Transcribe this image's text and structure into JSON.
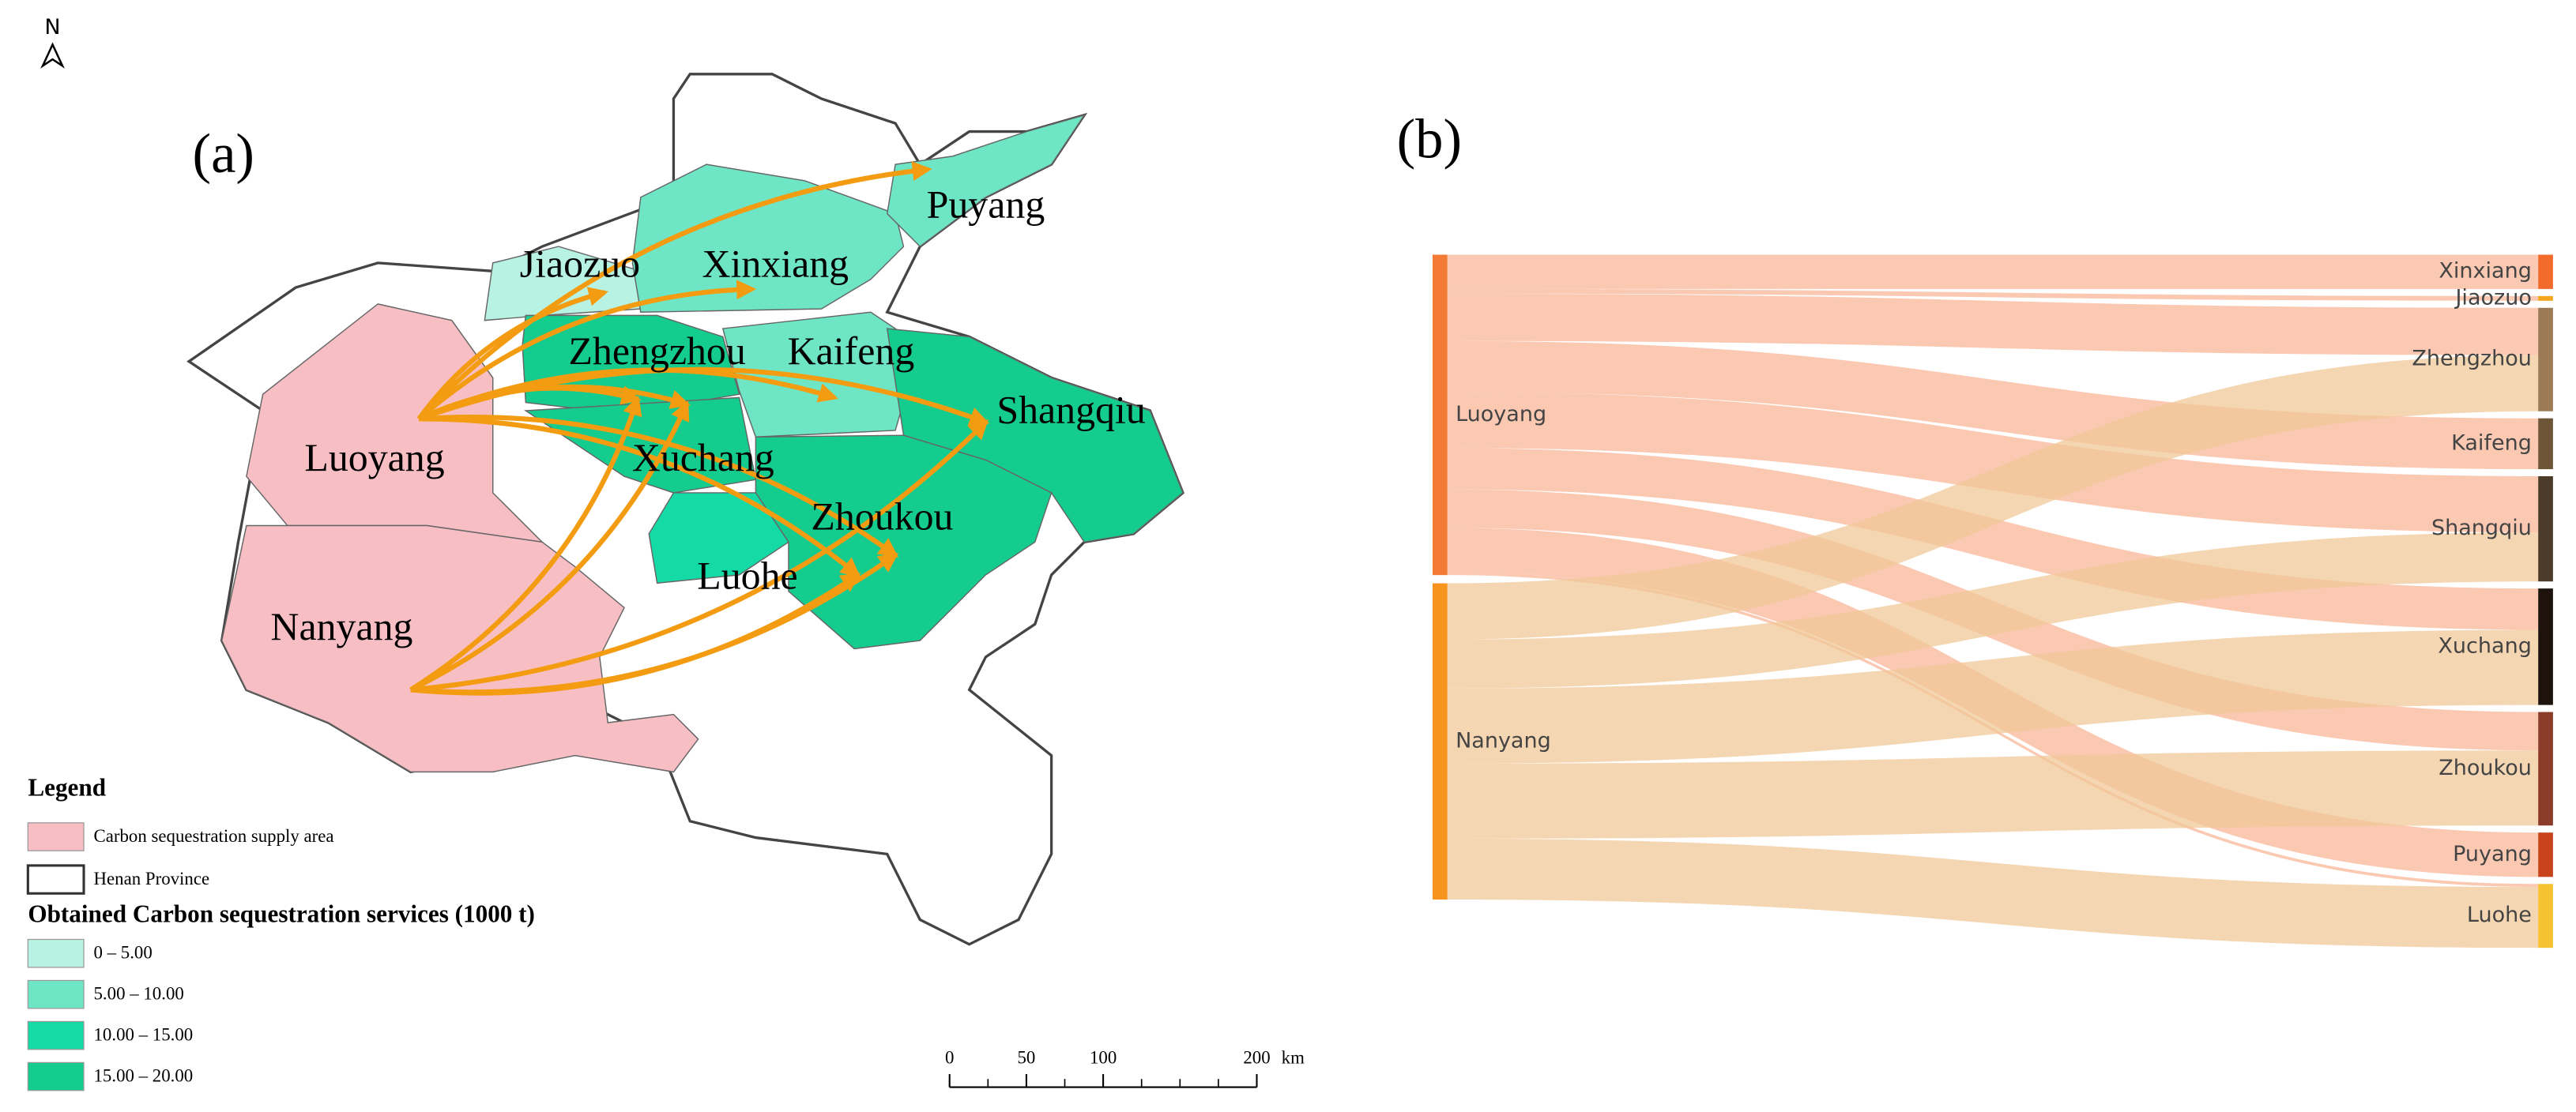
{
  "map": {
    "north": "N",
    "panel_label": "(a)",
    "legend": {
      "title": "Legend",
      "supply": {
        "label": "Carbon sequestration supply area",
        "color": "#f7bfc4"
      },
      "boundary": {
        "label": "Henan Province"
      },
      "services_title": "Obtained Carbon sequestration services (1000 t)",
      "classes": [
        {
          "label": "0 – 5.00",
          "color": "#b8f2e2"
        },
        {
          "label": "5.00 – 10.00",
          "color": "#6ee6c6"
        },
        {
          "label": "10.00 – 15.00",
          "color": "#14dba6"
        },
        {
          "label": "15.00 – 20.00",
          "color": "#14cc8e"
        }
      ]
    },
    "cities": [
      {
        "name": "Luoyang",
        "color": "#f7bfc4"
      },
      {
        "name": "Nanyang",
        "color": "#f7bfc4"
      },
      {
        "name": "Jiaozuo",
        "color": "#b8f2e2"
      },
      {
        "name": "Xinxiang",
        "color": "#6ee6c6"
      },
      {
        "name": "Puyang",
        "color": "#6ee6c6"
      },
      {
        "name": "Zhengzhou",
        "color": "#14cc8e"
      },
      {
        "name": "Kaifeng",
        "color": "#6ee6c6"
      },
      {
        "name": "Shangqiu",
        "color": "#14cc8e"
      },
      {
        "name": "Xuchang",
        "color": "#14cc8e"
      },
      {
        "name": "Zhoukou",
        "color": "#14cc8e"
      },
      {
        "name": "Luohe",
        "color": "#14dba6"
      }
    ],
    "arrow_color": "#f39c12",
    "scale_bar": {
      "ticks": [
        0,
        50,
        100,
        200
      ],
      "unit": "km"
    }
  },
  "chart_data": {
    "type": "sankey",
    "panel_label": "(b)",
    "nodes": [
      {
        "name": "Luoyang",
        "color": "#f47b36",
        "link_color": "#f9b598"
      },
      {
        "name": "Nanyang",
        "color": "#f7941d",
        "link_color": "#f1c898"
      },
      {
        "name": "Xinxiang",
        "color": "#f26b2b"
      },
      {
        "name": "Jiaozuo",
        "color": "#f5a61c"
      },
      {
        "name": "Zhengzhou",
        "color": "#9b7a55"
      },
      {
        "name": "Kaifeng",
        "color": "#6e5537"
      },
      {
        "name": "Shangqiu",
        "color": "#4b3b28"
      },
      {
        "name": "Xuchang",
        "color": "#1e120c"
      },
      {
        "name": "Zhoukou",
        "color": "#8a3b2a"
      },
      {
        "name": "Puyang",
        "color": "#c8431c"
      },
      {
        "name": "Luohe",
        "color": "#f7c232"
      }
    ],
    "links": [
      {
        "source": "Luoyang",
        "target": "Xinxiang",
        "value": 5.8
      },
      {
        "source": "Luoyang",
        "target": "Jiaozuo",
        "value": 0.8
      },
      {
        "source": "Luoyang",
        "target": "Zhengzhou",
        "value": 8.0
      },
      {
        "source": "Luoyang",
        "target": "Kaifeng",
        "value": 8.6
      },
      {
        "source": "Luoyang",
        "target": "Shangqiu",
        "value": 9.5
      },
      {
        "source": "Luoyang",
        "target": "Xuchang",
        "value": 7.0
      },
      {
        "source": "Luoyang",
        "target": "Zhoukou",
        "value": 6.5
      },
      {
        "source": "Luoyang",
        "target": "Puyang",
        "value": 7.5
      },
      {
        "source": "Luoyang",
        "target": "Luohe",
        "value": 0.5
      },
      {
        "source": "Nanyang",
        "target": "Zhengzhou",
        "value": 9.5
      },
      {
        "source": "Nanyang",
        "target": "Shangqiu",
        "value": 8.3
      },
      {
        "source": "Nanyang",
        "target": "Xuchang",
        "value": 12.7
      },
      {
        "source": "Nanyang",
        "target": "Zhoukou",
        "value": 12.7
      },
      {
        "source": "Nanyang",
        "target": "Luohe",
        "value": 10.3
      }
    ]
  }
}
